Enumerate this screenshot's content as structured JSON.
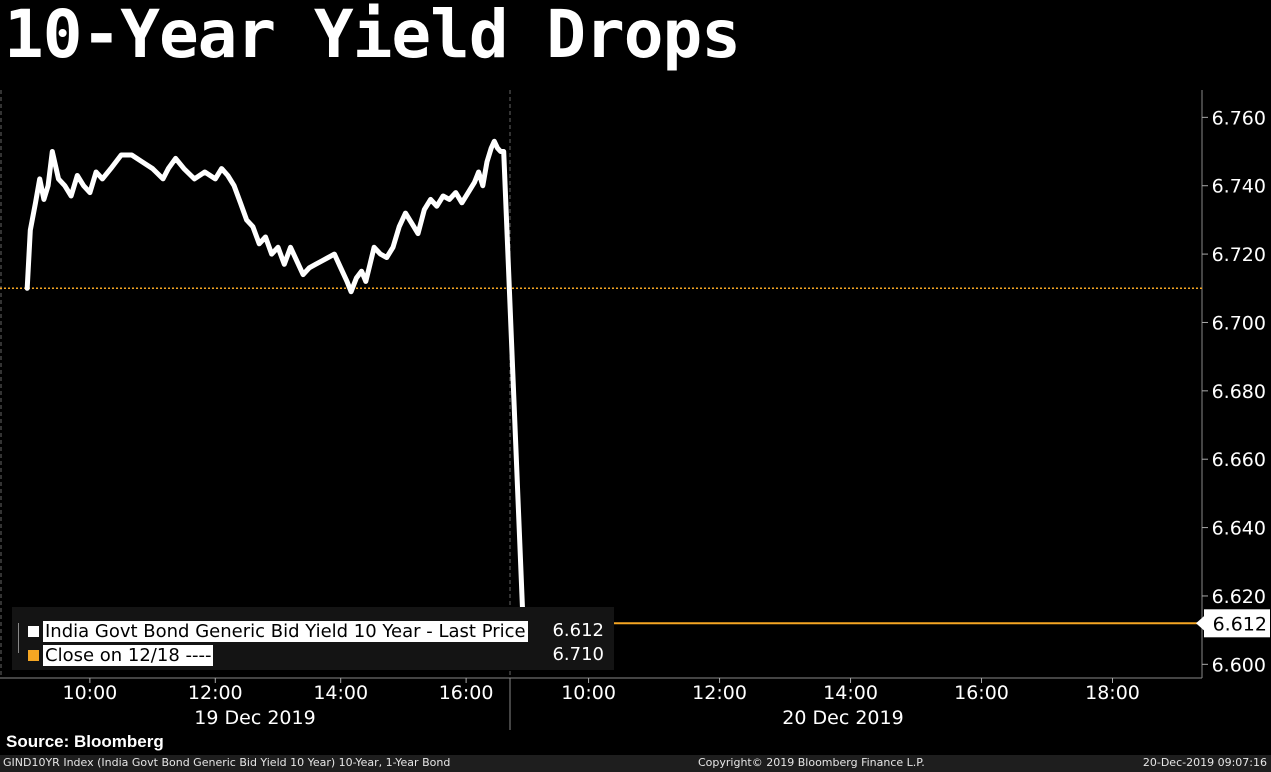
{
  "title": "10-Year Yield Drops",
  "source": "Source: Bloomberg",
  "footer": {
    "left": "GIND10YR Index (India Govt Bond Generic Bid Yield 10 Year) 10-Year, 1-Year Bond",
    "center": "Copyright© 2019 Bloomberg Finance L.P.",
    "right": "20-Dec-2019 09:07:16"
  },
  "colors": {
    "background": "#000000",
    "series": "#ffffff",
    "close_line": "#f5a623"
  },
  "legend": {
    "series_label": "India Govt Bond Generic Bid Yield 10 Year - Last Price",
    "series_value": "6.612",
    "close_label": "Close on 12/18 ----",
    "close_value": "6.710"
  },
  "chart_data": {
    "type": "line",
    "ylim": [
      6.596,
      6.768
    ],
    "y_ticks": [
      6.76,
      6.74,
      6.72,
      6.7,
      6.68,
      6.66,
      6.64,
      6.62,
      6.6
    ],
    "y_tick_labels": [
      "6.760",
      "6.740",
      "6.720",
      "6.700",
      "6.680",
      "6.660",
      "6.640",
      "6.620",
      "6.600"
    ],
    "last_value": 6.612,
    "last_value_label": "6.612",
    "close_value": 6.71,
    "x_time_labels": [
      "10:00",
      "12:00",
      "14:00",
      "16:00",
      "10:00",
      "12:00",
      "14:00",
      "16:00",
      "18:00"
    ],
    "x_date_labels": [
      "19 Dec 2019",
      "20 Dec 2019"
    ],
    "series": [
      {
        "name": "India Govt Bond Generic Bid Yield 10 Year - Last Price",
        "points": [
          [
            "19 Dec 09:00",
            6.71
          ],
          [
            "19 Dec 09:03",
            6.727
          ],
          [
            "19 Dec 09:08",
            6.735
          ],
          [
            "19 Dec 09:12",
            6.742
          ],
          [
            "19 Dec 09:16",
            6.736
          ],
          [
            "19 Dec 09:20",
            6.74
          ],
          [
            "19 Dec 09:24",
            6.75
          ],
          [
            "19 Dec 09:30",
            6.742
          ],
          [
            "19 Dec 09:36",
            6.74
          ],
          [
            "19 Dec 09:42",
            6.737
          ],
          [
            "19 Dec 09:48",
            6.743
          ],
          [
            "19 Dec 09:54",
            6.74
          ],
          [
            "19 Dec 10:00",
            6.738
          ],
          [
            "19 Dec 10:06",
            6.744
          ],
          [
            "19 Dec 10:12",
            6.742
          ],
          [
            "19 Dec 10:20",
            6.745
          ],
          [
            "19 Dec 10:30",
            6.749
          ],
          [
            "19 Dec 10:40",
            6.749
          ],
          [
            "19 Dec 10:50",
            6.747
          ],
          [
            "19 Dec 11:00",
            6.745
          ],
          [
            "19 Dec 11:10",
            6.742
          ],
          [
            "19 Dec 11:15",
            6.745
          ],
          [
            "19 Dec 11:22",
            6.748
          ],
          [
            "19 Dec 11:30",
            6.745
          ],
          [
            "19 Dec 11:40",
            6.742
          ],
          [
            "19 Dec 11:50",
            6.744
          ],
          [
            "19 Dec 12:00",
            6.742
          ],
          [
            "19 Dec 12:06",
            6.745
          ],
          [
            "19 Dec 12:12",
            6.743
          ],
          [
            "19 Dec 12:18",
            6.74
          ],
          [
            "19 Dec 12:24",
            6.735
          ],
          [
            "19 Dec 12:30",
            6.73
          ],
          [
            "19 Dec 12:36",
            6.728
          ],
          [
            "19 Dec 12:42",
            6.723
          ],
          [
            "19 Dec 12:48",
            6.725
          ],
          [
            "19 Dec 12:54",
            6.72
          ],
          [
            "19 Dec 13:00",
            6.722
          ],
          [
            "19 Dec 13:06",
            6.717
          ],
          [
            "19 Dec 13:12",
            6.722
          ],
          [
            "19 Dec 13:18",
            6.718
          ],
          [
            "19 Dec 13:24",
            6.714
          ],
          [
            "19 Dec 13:30",
            6.716
          ],
          [
            "19 Dec 13:36",
            6.717
          ],
          [
            "19 Dec 13:42",
            6.718
          ],
          [
            "19 Dec 13:48",
            6.719
          ],
          [
            "19 Dec 13:54",
            6.72
          ],
          [
            "19 Dec 14:00",
            6.716
          ],
          [
            "19 Dec 14:06",
            6.712
          ],
          [
            "19 Dec 14:10",
            6.709
          ],
          [
            "19 Dec 14:15",
            6.713
          ],
          [
            "19 Dec 14:20",
            6.715
          ],
          [
            "19 Dec 14:24",
            6.712
          ],
          [
            "19 Dec 14:28",
            6.717
          ],
          [
            "19 Dec 14:32",
            6.722
          ],
          [
            "19 Dec 14:38",
            6.72
          ],
          [
            "19 Dec 14:44",
            6.719
          ],
          [
            "19 Dec 14:50",
            6.722
          ],
          [
            "19 Dec 14:56",
            6.728
          ],
          [
            "19 Dec 15:02",
            6.732
          ],
          [
            "19 Dec 15:08",
            6.729
          ],
          [
            "19 Dec 15:14",
            6.726
          ],
          [
            "19 Dec 15:20",
            6.733
          ],
          [
            "19 Dec 15:26",
            6.736
          ],
          [
            "19 Dec 15:32",
            6.734
          ],
          [
            "19 Dec 15:38",
            6.737
          ],
          [
            "19 Dec 15:44",
            6.736
          ],
          [
            "19 Dec 15:50",
            6.738
          ],
          [
            "19 Dec 15:56",
            6.735
          ],
          [
            "19 Dec 16:02",
            6.738
          ],
          [
            "19 Dec 16:08",
            6.741
          ],
          [
            "19 Dec 16:12",
            6.744
          ],
          [
            "19 Dec 16:16",
            6.74
          ],
          [
            "19 Dec 16:20",
            6.747
          ],
          [
            "19 Dec 16:24",
            6.751
          ],
          [
            "19 Dec 16:27",
            6.753
          ],
          [
            "19 Dec 16:30",
            6.751
          ],
          [
            "19 Dec 16:33",
            6.75
          ],
          [
            "19 Dec 16:36",
            6.75
          ],
          [
            "20 Dec 09:00",
            6.612
          ]
        ]
      },
      {
        "name": "Close on 12/18",
        "value": 6.71
      }
    ]
  }
}
